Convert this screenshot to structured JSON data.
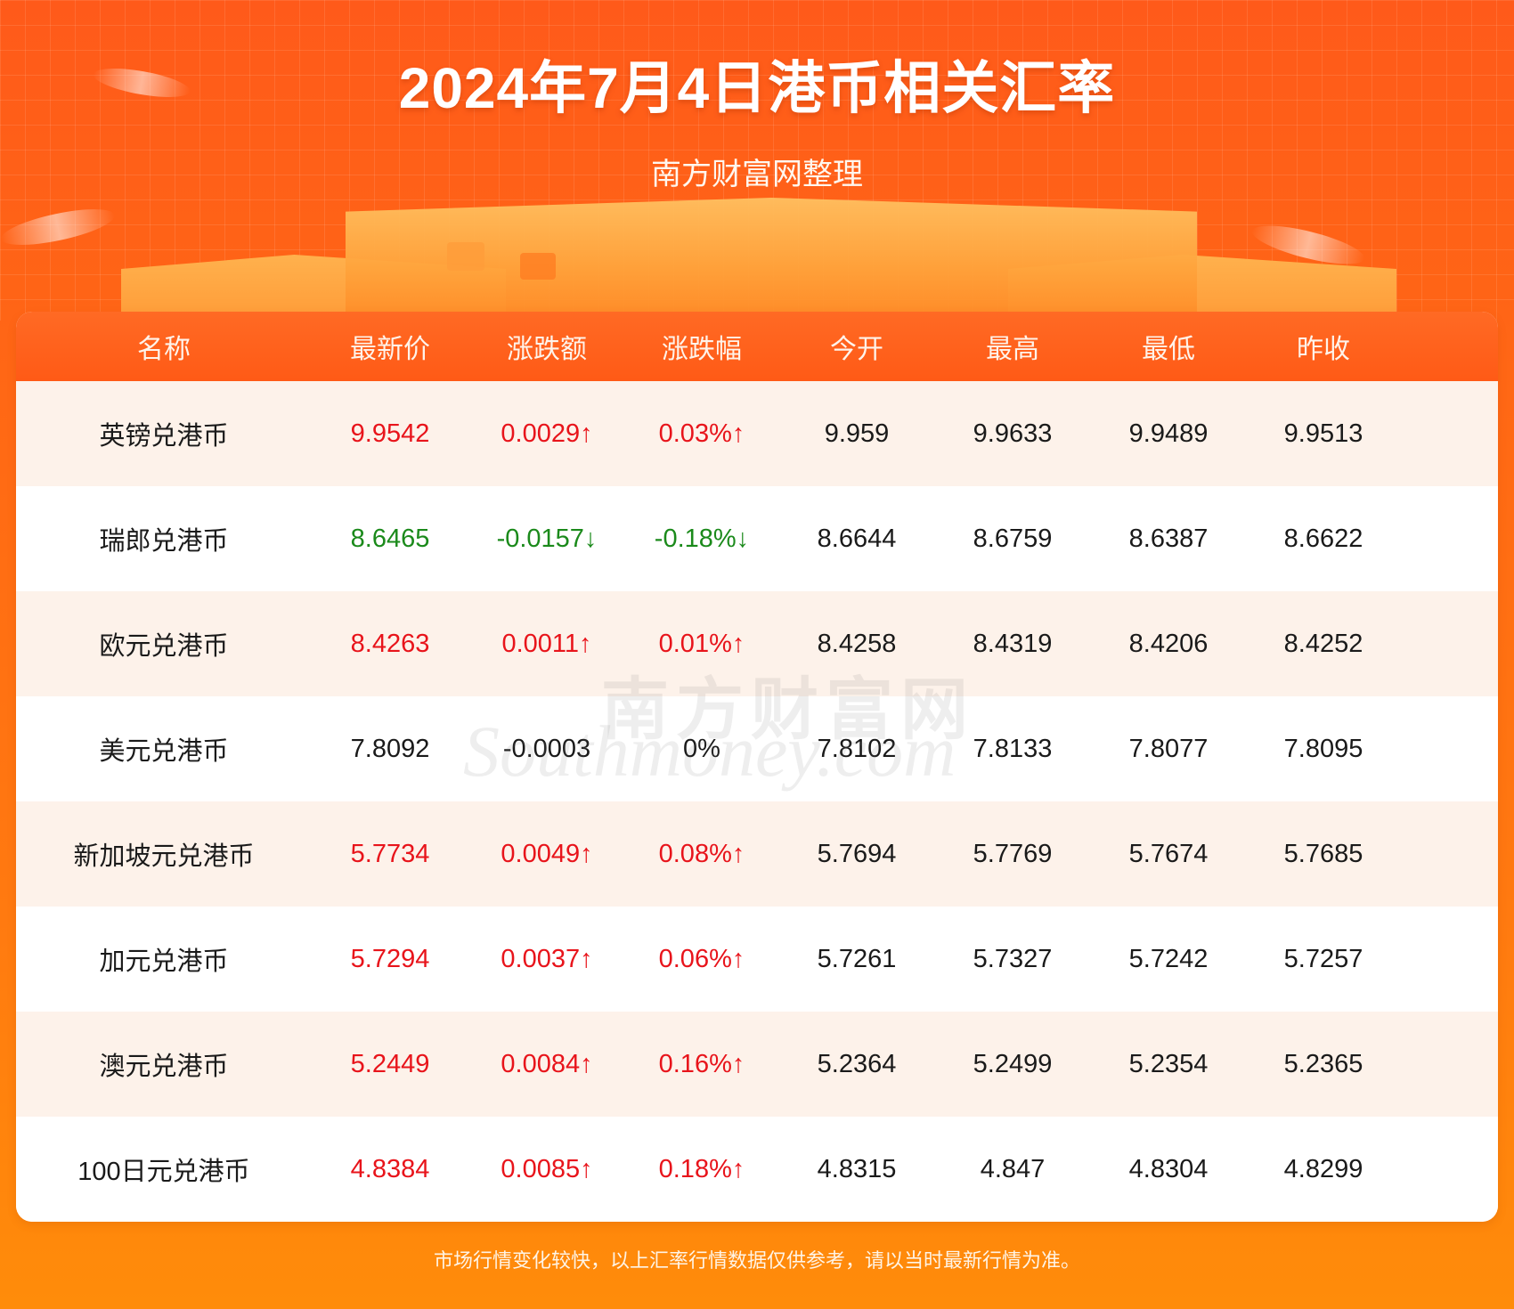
{
  "header": {
    "title": "2024年7月4日港币相关汇率",
    "subtitle": "南方财富网整理"
  },
  "table": {
    "columns": [
      "名称",
      "最新价",
      "涨跌额",
      "涨跌幅",
      "今开",
      "最高",
      "最低",
      "昨收"
    ],
    "rows": [
      {
        "name": "英镑兑港币",
        "latest": "9.9542",
        "change": "0.0029↑",
        "pct": "0.03%↑",
        "open": "9.959",
        "high": "9.9633",
        "low": "9.9489",
        "prev": "9.9513",
        "trend": "up"
      },
      {
        "name": "瑞郎兑港币",
        "latest": "8.6465",
        "change": "-0.0157↓",
        "pct": "-0.18%↓",
        "open": "8.6644",
        "high": "8.6759",
        "low": "8.6387",
        "prev": "8.6622",
        "trend": "down"
      },
      {
        "name": "欧元兑港币",
        "latest": "8.4263",
        "change": "0.0011↑",
        "pct": "0.01%↑",
        "open": "8.4258",
        "high": "8.4319",
        "low": "8.4206",
        "prev": "8.4252",
        "trend": "up"
      },
      {
        "name": "美元兑港币",
        "latest": "7.8092",
        "change": "-0.0003",
        "pct": "0%",
        "open": "7.8102",
        "high": "7.8133",
        "low": "7.8077",
        "prev": "7.8095",
        "trend": "flat"
      },
      {
        "name": "新加坡元兑港币",
        "latest": "5.7734",
        "change": "0.0049↑",
        "pct": "0.08%↑",
        "open": "5.7694",
        "high": "5.7769",
        "low": "5.7674",
        "prev": "5.7685",
        "trend": "up"
      },
      {
        "name": "加元兑港币",
        "latest": "5.7294",
        "change": "0.0037↑",
        "pct": "0.06%↑",
        "open": "5.7261",
        "high": "5.7327",
        "low": "5.7242",
        "prev": "5.7257",
        "trend": "up"
      },
      {
        "name": "澳元兑港币",
        "latest": "5.2449",
        "change": "0.0084↑",
        "pct": "0.16%↑",
        "open": "5.2364",
        "high": "5.2499",
        "low": "5.2354",
        "prev": "5.2365",
        "trend": "up"
      },
      {
        "name": "100日元兑港币",
        "latest": "4.8384",
        "change": "0.0085↑",
        "pct": "0.18%↑",
        "open": "4.8315",
        "high": "4.847",
        "low": "4.8304",
        "prev": "4.8299",
        "trend": "up"
      }
    ]
  },
  "watermark": {
    "cn": "南方财富网",
    "en": "Southmoney.com"
  },
  "footer": {
    "note": "市场行情变化较快，以上汇率行情数据仅供参考，请以当时最新行情为准。"
  },
  "colors": {
    "up": "#e8141b",
    "down": "#1b8a1b",
    "header_bg": "#ff5a16",
    "accent": "#ff6a14"
  }
}
